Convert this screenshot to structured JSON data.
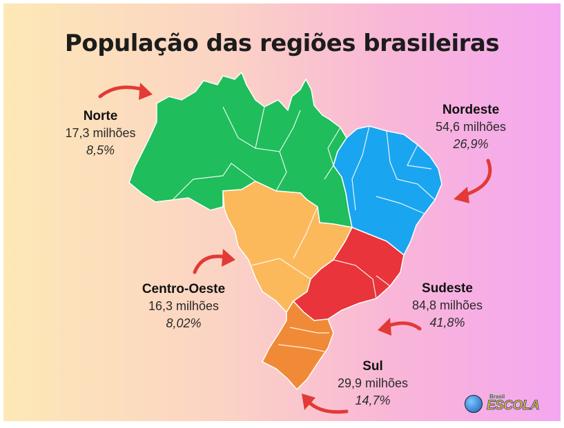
{
  "title": "População das regiões brasileiras",
  "colors": {
    "norte": "#1fbd5b",
    "nordeste": "#1aa5f0",
    "centro_oeste": "#fbb95c",
    "sudeste": "#e8343a",
    "sul": "#f18a36",
    "arrow": "#e23a36"
  },
  "regions": {
    "norte": {
      "name": "Norte",
      "population": "17,3 milhões",
      "percent": "8,5%"
    },
    "nordeste": {
      "name": "Nordeste",
      "population": "54,6 milhões",
      "percent": "26,9%"
    },
    "centro_oeste": {
      "name": "Centro-Oeste",
      "population": "16,3 milhões",
      "percent": "8,02%"
    },
    "sudeste": {
      "name": "Sudeste",
      "population": "84,8 milhões",
      "percent": "41,8%"
    },
    "sul": {
      "name": "Sul",
      "population": "29,9 milhões",
      "percent": "14,7%"
    }
  },
  "logo": {
    "small": "Brasil",
    "big": "ESCOLA"
  }
}
